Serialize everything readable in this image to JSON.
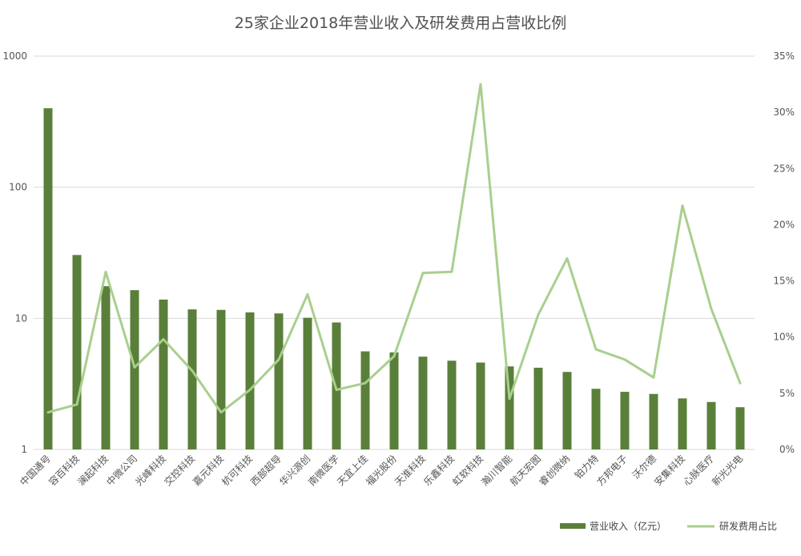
{
  "chart_data": {
    "type": "bar",
    "title": "25家企业2018年营业收入及研发费用占营收比例",
    "categories": [
      "中国通号",
      "容百科技",
      "澜起科技",
      "中微公司",
      "光峰科技",
      "交控科技",
      "嘉元科技",
      "杭可科技",
      "西部超导",
      "华兴源创",
      "南微医学",
      "天宜上佳",
      "福光股份",
      "天准科技",
      "乐鑫科技",
      "虹软科技",
      "瀚川智能",
      "航天宏图",
      "睿创微纳",
      "铂力特",
      "方邦电子",
      "沃尔德",
      "安集科技",
      "心脉医疗",
      "新光光电"
    ],
    "series": [
      {
        "name": "营业收入（亿元）",
        "type": "bar",
        "axis": "left",
        "color": "#5a7f3a",
        "values": [
          400,
          30.4,
          17.6,
          16.4,
          13.9,
          11.7,
          11.6,
          11.1,
          10.9,
          10.1,
          9.3,
          5.6,
          5.5,
          5.1,
          4.75,
          4.6,
          4.3,
          4.2,
          3.9,
          2.9,
          2.75,
          2.65,
          2.45,
          2.3,
          2.1
        ]
      },
      {
        "name": "研发费用占比",
        "type": "line",
        "axis": "right",
        "color": "#a9cf8d",
        "values": [
          3.3,
          4.0,
          15.8,
          7.3,
          9.8,
          7.0,
          3.3,
          5.3,
          8.0,
          13.8,
          5.3,
          5.9,
          8.3,
          15.7,
          15.8,
          32.5,
          4.5,
          12.0,
          17.0,
          8.9,
          8.0,
          6.4,
          21.7,
          12.5,
          5.9
        ]
      }
    ],
    "y_left": {
      "scale": "log",
      "ylim": [
        1,
        1000
      ],
      "ticks": [
        "1",
        "10",
        "100",
        "1000"
      ]
    },
    "y_right": {
      "ylim": [
        0,
        35
      ],
      "ticks": [
        "0%",
        "5%",
        "10%",
        "15%",
        "20%",
        "25%",
        "30%",
        "35%"
      ]
    },
    "grid": true,
    "legend_position": "bottom-right"
  }
}
